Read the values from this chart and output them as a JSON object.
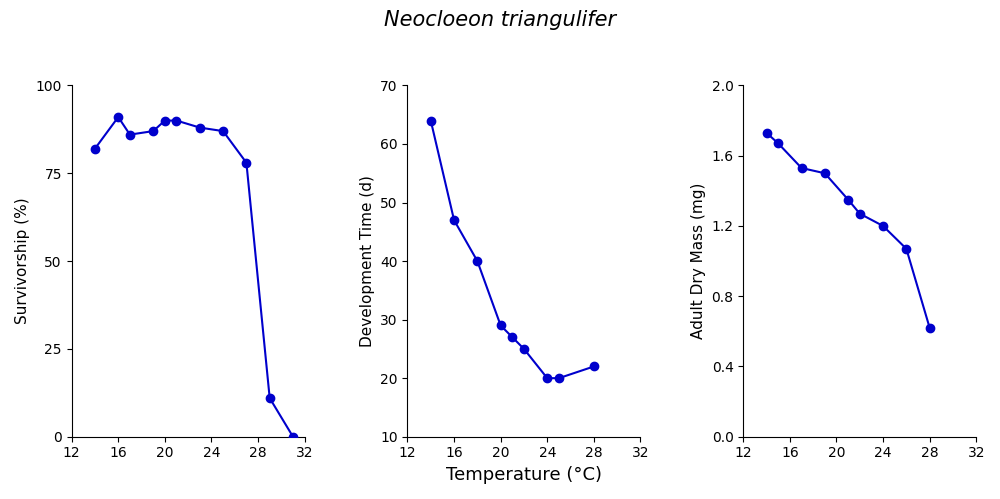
{
  "title": "Neocloeon triangulifer",
  "title_fontstyle": "italic",
  "title_fontsize": 15,
  "line_color": "#0000CC",
  "marker": "o",
  "markersize": 6,
  "linewidth": 1.5,
  "panel1": {
    "xlabel": "",
    "ylabel": "Survivorship (%)",
    "xlim": [
      12,
      32
    ],
    "ylim": [
      0,
      100
    ],
    "xticks": [
      12,
      16,
      20,
      24,
      28,
      32
    ],
    "yticks": [
      0,
      25,
      50,
      75,
      100
    ],
    "x": [
      14,
      16,
      17,
      19,
      20,
      21,
      23,
      25,
      27,
      29,
      31
    ],
    "y": [
      82,
      91,
      86,
      87,
      90,
      90,
      88,
      87,
      78,
      11,
      0
    ]
  },
  "panel2": {
    "xlabel": "Temperature (°C)",
    "ylabel": "Development Time (d)",
    "xlim": [
      12,
      32
    ],
    "ylim": [
      10,
      70
    ],
    "xticks": [
      12,
      16,
      20,
      24,
      28,
      32
    ],
    "yticks": [
      10,
      20,
      30,
      40,
      50,
      60,
      70
    ],
    "x": [
      14,
      16,
      18,
      20,
      21,
      22,
      24,
      25,
      28
    ],
    "y": [
      64,
      47,
      40,
      29,
      27,
      25,
      20,
      20,
      22
    ]
  },
  "panel3": {
    "xlabel": "",
    "ylabel": "Adult Dry Mass (mg)",
    "xlim": [
      12,
      32
    ],
    "ylim": [
      0.0,
      2.0
    ],
    "xticks": [
      12,
      16,
      20,
      24,
      28,
      32
    ],
    "yticks": [
      0.0,
      0.4,
      0.8,
      1.2,
      1.6,
      2.0
    ],
    "x": [
      14,
      15,
      17,
      19,
      21,
      22,
      24,
      26,
      28
    ],
    "y": [
      1.73,
      1.67,
      1.53,
      1.5,
      1.35,
      1.27,
      1.2,
      1.07,
      0.62
    ]
  },
  "xlabel_fontsize": 13,
  "ylabel_fontsize": 11,
  "tick_labelsize": 10,
  "background_color": "#ffffff"
}
